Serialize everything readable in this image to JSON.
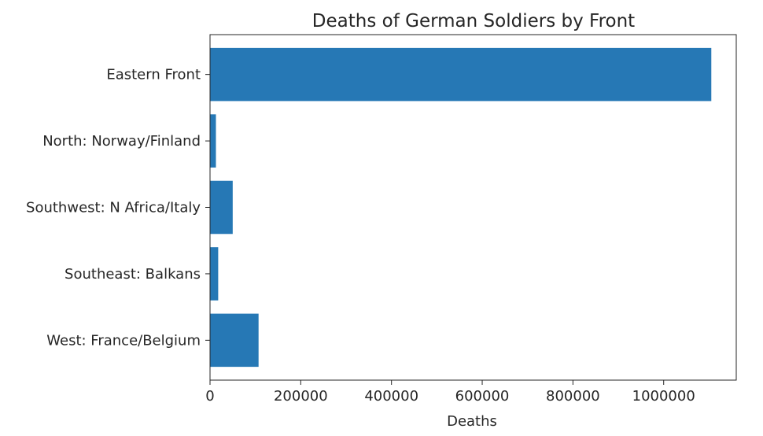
{
  "chart_data": {
    "type": "bar",
    "orientation": "horizontal",
    "title": "Deaths of German Soldiers by Front",
    "xlabel": "Deaths",
    "ylabel": "",
    "categories": [
      "Eastern Front",
      "North: Norway/Finland",
      "Southwest: N Africa/Italy",
      "Southeast: Balkans",
      "West: France/Belgium"
    ],
    "values": [
      1105000,
      13000,
      50000,
      18000,
      107000
    ],
    "xlim": [
      0,
      1160000
    ],
    "xticks": [
      0,
      200000,
      400000,
      600000,
      800000,
      1000000
    ],
    "xtick_labels": [
      "0",
      "200000",
      "400000",
      "600000",
      "800000",
      "1000000"
    ],
    "grid": false,
    "bar_color": "#2678b5"
  }
}
